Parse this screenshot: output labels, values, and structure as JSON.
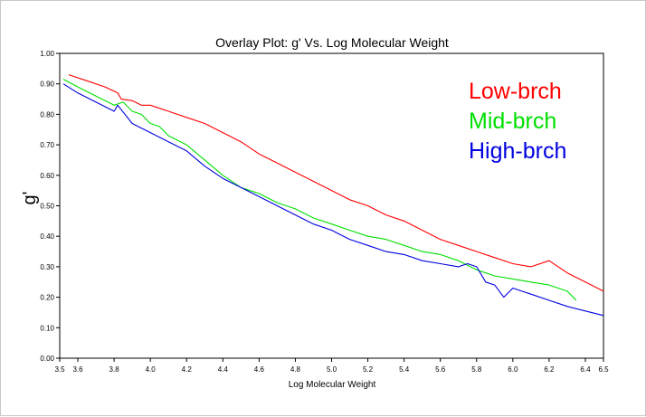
{
  "chart_data": {
    "type": "line",
    "title": "Overlay Plot: g' Vs. Log Molecular Weight",
    "xlabel": "Log Molecular Weight",
    "ylabel": "g'",
    "xlim": [
      3.5,
      6.5
    ],
    "ylim": [
      0.0,
      1.0
    ],
    "x_ticks": [
      "3.5",
      "3.6",
      "3.8",
      "4.0",
      "4.2",
      "4.4",
      "4.6",
      "4.8",
      "5.0",
      "5.2",
      "5.4",
      "5.6",
      "5.8",
      "6.0",
      "6.2",
      "6.4",
      "6.5"
    ],
    "y_ticks": [
      "0.00",
      "0.10",
      "0.20",
      "0.30",
      "0.40",
      "0.50",
      "0.60",
      "0.70",
      "0.80",
      "0.90",
      "1.00"
    ],
    "grid": false,
    "legend_position": "top-right",
    "series": [
      {
        "name": "Low-brch",
        "color": "#ff0000",
        "points": [
          [
            3.55,
            0.93
          ],
          [
            3.65,
            0.91
          ],
          [
            3.75,
            0.89
          ],
          [
            3.82,
            0.87
          ],
          [
            3.84,
            0.85
          ],
          [
            3.9,
            0.845
          ],
          [
            3.95,
            0.83
          ],
          [
            4.0,
            0.83
          ],
          [
            4.05,
            0.82
          ],
          [
            4.1,
            0.81
          ],
          [
            4.2,
            0.79
          ],
          [
            4.3,
            0.77
          ],
          [
            4.4,
            0.74
          ],
          [
            4.5,
            0.71
          ],
          [
            4.6,
            0.67
          ],
          [
            4.7,
            0.64
          ],
          [
            4.8,
            0.61
          ],
          [
            4.9,
            0.58
          ],
          [
            5.0,
            0.55
          ],
          [
            5.1,
            0.52
          ],
          [
            5.2,
            0.5
          ],
          [
            5.3,
            0.47
          ],
          [
            5.4,
            0.45
          ],
          [
            5.5,
            0.42
          ],
          [
            5.6,
            0.39
          ],
          [
            5.7,
            0.37
          ],
          [
            5.8,
            0.35
          ],
          [
            5.9,
            0.33
          ],
          [
            6.0,
            0.31
          ],
          [
            6.1,
            0.3
          ],
          [
            6.2,
            0.32
          ],
          [
            6.3,
            0.28
          ],
          [
            6.4,
            0.25
          ],
          [
            6.5,
            0.22
          ]
        ]
      },
      {
        "name": "Mid-brch",
        "color": "#00e000",
        "points": [
          [
            3.52,
            0.915
          ],
          [
            3.6,
            0.89
          ],
          [
            3.7,
            0.86
          ],
          [
            3.8,
            0.83
          ],
          [
            3.85,
            0.84
          ],
          [
            3.9,
            0.81
          ],
          [
            3.95,
            0.8
          ],
          [
            4.0,
            0.77
          ],
          [
            4.05,
            0.76
          ],
          [
            4.1,
            0.73
          ],
          [
            4.2,
            0.7
          ],
          [
            4.3,
            0.65
          ],
          [
            4.4,
            0.6
          ],
          [
            4.5,
            0.56
          ],
          [
            4.6,
            0.54
          ],
          [
            4.7,
            0.51
          ],
          [
            4.8,
            0.49
          ],
          [
            4.9,
            0.46
          ],
          [
            5.0,
            0.44
          ],
          [
            5.1,
            0.42
          ],
          [
            5.2,
            0.4
          ],
          [
            5.3,
            0.39
          ],
          [
            5.4,
            0.37
          ],
          [
            5.5,
            0.35
          ],
          [
            5.6,
            0.34
          ],
          [
            5.7,
            0.32
          ],
          [
            5.8,
            0.29
          ],
          [
            5.9,
            0.27
          ],
          [
            6.0,
            0.26
          ],
          [
            6.1,
            0.25
          ],
          [
            6.2,
            0.24
          ],
          [
            6.3,
            0.22
          ],
          [
            6.35,
            0.19
          ]
        ]
      },
      {
        "name": "High-brch",
        "color": "#0000e0",
        "points": [
          [
            3.52,
            0.9
          ],
          [
            3.6,
            0.87
          ],
          [
            3.7,
            0.84
          ],
          [
            3.8,
            0.81
          ],
          [
            3.82,
            0.83
          ],
          [
            3.9,
            0.77
          ],
          [
            4.0,
            0.74
          ],
          [
            4.1,
            0.71
          ],
          [
            4.2,
            0.68
          ],
          [
            4.3,
            0.63
          ],
          [
            4.4,
            0.59
          ],
          [
            4.5,
            0.56
          ],
          [
            4.6,
            0.53
          ],
          [
            4.7,
            0.5
          ],
          [
            4.8,
            0.47
          ],
          [
            4.9,
            0.44
          ],
          [
            5.0,
            0.42
          ],
          [
            5.1,
            0.39
          ],
          [
            5.2,
            0.37
          ],
          [
            5.3,
            0.35
          ],
          [
            5.4,
            0.34
          ],
          [
            5.5,
            0.32
          ],
          [
            5.6,
            0.31
          ],
          [
            5.7,
            0.3
          ],
          [
            5.75,
            0.31
          ],
          [
            5.8,
            0.3
          ],
          [
            5.85,
            0.25
          ],
          [
            5.9,
            0.24
          ],
          [
            5.95,
            0.2
          ],
          [
            6.0,
            0.23
          ],
          [
            6.05,
            0.22
          ],
          [
            6.1,
            0.21
          ],
          [
            6.2,
            0.19
          ],
          [
            6.3,
            0.17
          ],
          [
            6.4,
            0.155
          ],
          [
            6.5,
            0.14
          ]
        ]
      }
    ]
  }
}
